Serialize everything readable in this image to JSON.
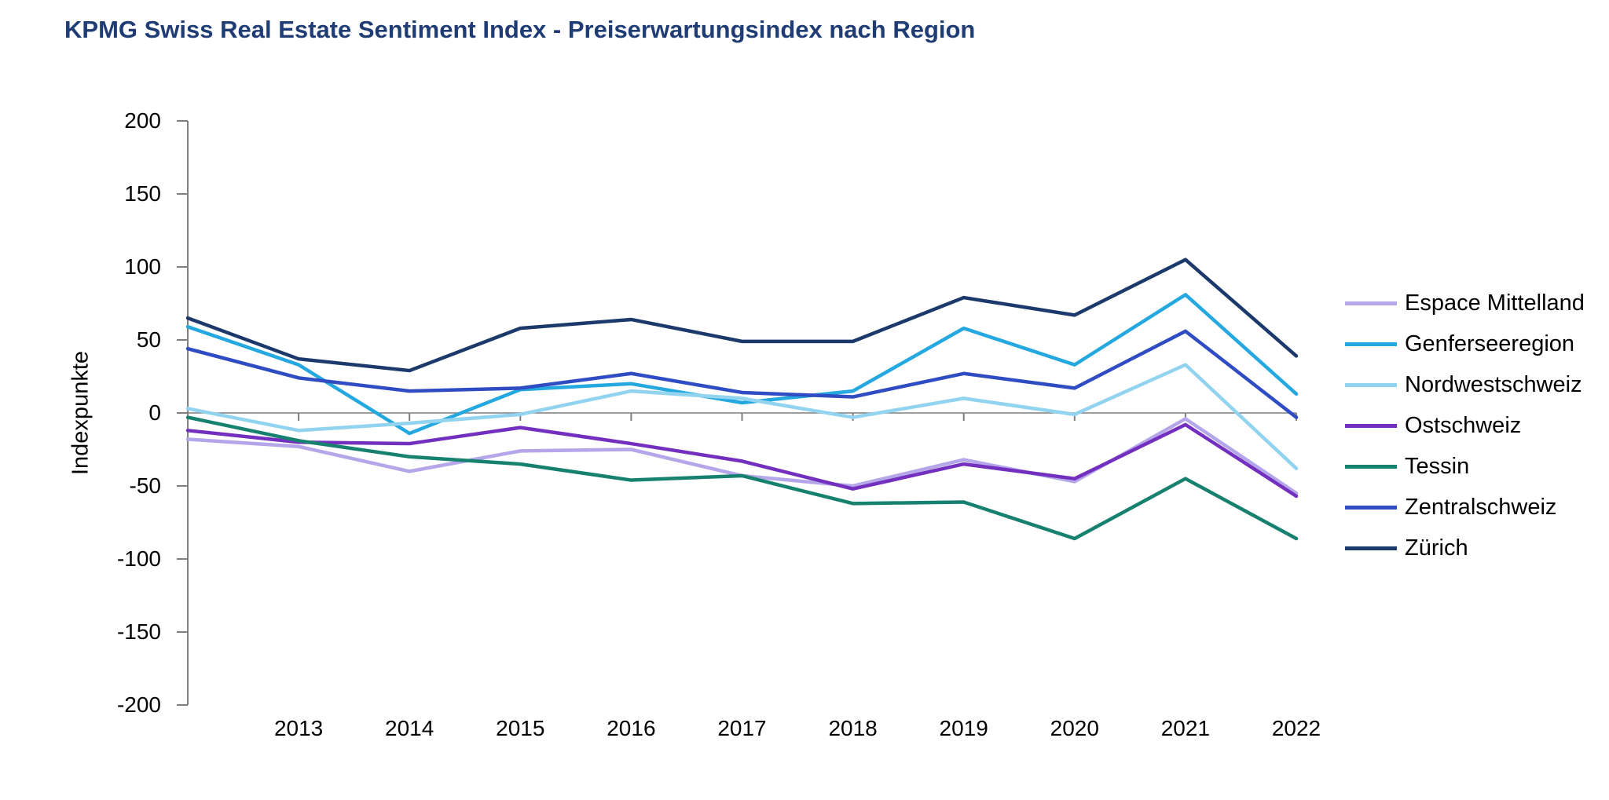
{
  "title": "KPMG Swiss Real Estate Sentiment Index - Preiserwartungsindex nach Region",
  "colors": {
    "title": "#1f3c74",
    "axis": "#7f7f7f",
    "zero_line": "#7f7f7f",
    "tick_label": "#000000"
  },
  "chart_data": {
    "type": "line",
    "title": "KPMG Swiss Real Estate Sentiment Index - Preiserwartungsindex nach Region",
    "xlabel": "",
    "ylabel": "Indexpunkte",
    "ylim": [
      -200,
      200
    ],
    "y_ticks": [
      200,
      150,
      100,
      50,
      0,
      -50,
      -100,
      -150,
      -200
    ],
    "x": [
      2012,
      2013,
      2014,
      2015,
      2016,
      2017,
      2018,
      2019,
      2020,
      2021,
      2022
    ],
    "x_tick_labels": [
      "2013",
      "2014",
      "2015",
      "2016",
      "2017",
      "2018",
      "2019",
      "2020",
      "2021",
      "2022"
    ],
    "grid": "zero-line-only",
    "legend_position": "right",
    "series": [
      {
        "name": "Espace Mittelland",
        "color": "#b5a6e9",
        "values": [
          -18,
          -23,
          -40,
          -26,
          -25,
          -43,
          -50,
          -32,
          -47,
          -4,
          -55
        ]
      },
      {
        "name": "Genferseeregion",
        "color": "#25a8e0",
        "values": [
          59,
          33,
          -14,
          16,
          20,
          7,
          15,
          58,
          33,
          81,
          13
        ]
      },
      {
        "name": "Nordwestschweiz",
        "color": "#92d3f0",
        "values": [
          3,
          -12,
          -7,
          -1,
          15,
          10,
          -3,
          10,
          -1,
          33,
          -38
        ]
      },
      {
        "name": "Ostschweiz",
        "color": "#7330bf",
        "values": [
          -12,
          -20,
          -21,
          -10,
          -21,
          -33,
          -52,
          -35,
          -45,
          -8,
          -57
        ]
      },
      {
        "name": "Tessin",
        "color": "#17816f",
        "values": [
          -3,
          -19,
          -30,
          -35,
          -46,
          -43,
          -62,
          -61,
          -86,
          -45,
          -86
        ]
      },
      {
        "name": "Zentralschweiz",
        "color": "#2f4cc3",
        "values": [
          44,
          24,
          15,
          17,
          27,
          14,
          11,
          27,
          17,
          56,
          -3
        ]
      },
      {
        "name": "Zürich",
        "color": "#1b3a6b",
        "values": [
          65,
          37,
          29,
          58,
          64,
          49,
          49,
          79,
          67,
          105,
          39
        ]
      }
    ]
  }
}
